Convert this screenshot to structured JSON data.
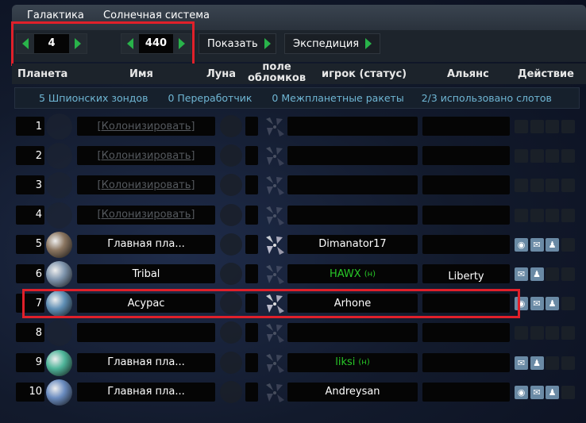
{
  "tabs": [
    "Галактика",
    "Солнечная система"
  ],
  "nav": {
    "galaxy": "4",
    "system": "440",
    "show_label": "Показать",
    "expedition_label": "Экспедиция"
  },
  "headers": {
    "planet": "Планета",
    "name": "Имя",
    "moon": "Луна",
    "debris_1": "поле",
    "debris_2": "обломков",
    "player": "игрок (статус)",
    "alliance": "Альянс",
    "action": "Действие"
  },
  "info": {
    "probes": "5 Шпионских зондов",
    "recyclers": "0 Переработчик",
    "missiles": "0 Межпланетные ракеты",
    "slots": "2/3 использовано слотов"
  },
  "colors": {
    "highlight": "#e0202a",
    "status_green": "#28c828",
    "action_icon": "#6a8aa5"
  },
  "rows": [
    {
      "pos": "1",
      "name": "[Колонизировать]",
      "empty": true
    },
    {
      "pos": "2",
      "name": "[Колонизировать]",
      "empty": true
    },
    {
      "pos": "3",
      "name": "[Колонизировать]",
      "empty": true
    },
    {
      "pos": "4",
      "name": "[Колонизировать]",
      "empty": true
    },
    {
      "pos": "5",
      "name": "Главная пла...",
      "player": "Dimanator17",
      "status": "",
      "alliance": "",
      "debris": true,
      "actions": [
        "eye-icon",
        "mail-icon",
        "user-icon"
      ],
      "planet_color": "#8a7560"
    },
    {
      "pos": "6",
      "name": "Tribal",
      "player": "HAWX",
      "status": "(н)",
      "alliance": "Liberty",
      "debris": false,
      "actions": [
        "mail-icon",
        "user-icon"
      ],
      "planet_color": "#7f95ad"
    },
    {
      "pos": "7",
      "name": "Acypac",
      "player": "Arhone",
      "status": "",
      "alliance": "",
      "debris": true,
      "actions": [
        "eye-icon",
        "mail-icon",
        "user-icon"
      ],
      "planet_color": "#5f8fb5"
    },
    {
      "pos": "8",
      "name": "",
      "empty": true,
      "nocol": true
    },
    {
      "pos": "9",
      "name": "Главная пла...",
      "player": "liksi",
      "status": "(н)",
      "alliance": "",
      "debris": false,
      "actions": [
        "mail-icon",
        "user-icon"
      ],
      "planet_color": "#4fb59a"
    },
    {
      "pos": "10",
      "name": "Главная пла...",
      "player": "Andreysan",
      "status": "",
      "alliance": "",
      "debris": false,
      "actions": [
        "eye-icon",
        "mail-icon",
        "user-icon"
      ],
      "planet_color": "#6a8cc0"
    }
  ]
}
